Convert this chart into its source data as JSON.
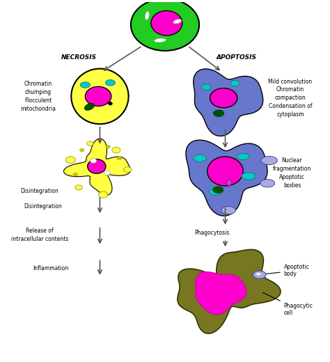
{
  "bg_color": "#ffffff",
  "necrosis_label": "NECROSIS",
  "apoptosis_label": "APOPTOSIS",
  "left_labels": {
    "step1": "Chromatin\nchumping\nFlocculent\nmitochondria",
    "step2": "Disintegration",
    "step3": "Release of\nintracellular contents",
    "step4": "Inflammation"
  },
  "right_labels": {
    "step1": "Mild convolution\nChromatin\ncompaction\nCondensation of\ncytoplasm",
    "step2": "Nuclear\nfragmentation\nApoptotic\nbodies",
    "step3": "Phagocytosis",
    "step4_a": "Apoptotic\nbody",
    "step4_b": "Phagocytic\ncell"
  },
  "colors": {
    "green_cell": "#22cc22",
    "magenta": "#ff00cc",
    "yellow_cell": "#ffff44",
    "cyan_organelle": "#00cccc",
    "dark_green": "#005500",
    "purple_cell": "#6677cc",
    "olive_cell": "#777722",
    "white": "#ffffff",
    "blue_body": "#aaaadd",
    "black": "#000000",
    "dark_yellow": "#cccc00"
  }
}
